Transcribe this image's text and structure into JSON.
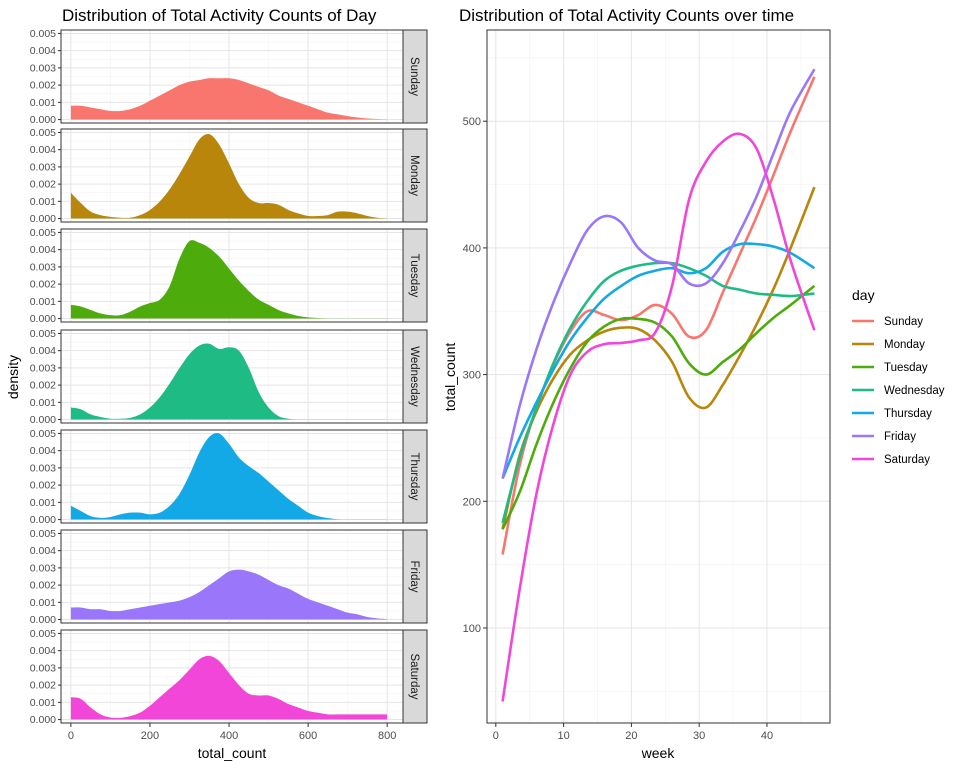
{
  "colors": {
    "Sunday": "#F8766D",
    "Monday": "#B8860B",
    "Tuesday": "#4DAC0B",
    "Wednesday": "#1FBB84",
    "Thursday": "#13A8E6",
    "Friday": "#9A77FA",
    "Saturday": "#F246D8"
  },
  "chart_data": [
    {
      "type": "area",
      "title": "Distribution of Total Activity Counts of Day",
      "xlabel": "total_count",
      "ylabel": "density",
      "xlim": [
        -25,
        840
      ],
      "ylim": [
        -0.0002,
        0.0052
      ],
      "x_ticks": [
        0,
        200,
        400,
        600,
        800
      ],
      "x_tick_labels": [
        "0",
        "200",
        "400",
        "600",
        "800"
      ],
      "y_ticks": [
        0,
        0.001,
        0.002,
        0.003,
        0.004,
        0.005
      ],
      "y_tick_labels": [
        "0.000",
        "0.001",
        "0.002",
        "0.003",
        "0.004",
        "0.005"
      ],
      "grid": true,
      "facet_strips": [
        "Sunday",
        "Monday",
        "Tuesday",
        "Wednesday",
        "Thursday",
        "Friday",
        "Saturday"
      ],
      "x": [
        0,
        25,
        50,
        75,
        100,
        125,
        150,
        175,
        200,
        225,
        250,
        275,
        300,
        325,
        350,
        375,
        400,
        425,
        450,
        475,
        500,
        525,
        550,
        575,
        600,
        625,
        650,
        675,
        700,
        725,
        750,
        775,
        800
      ],
      "series": [
        {
          "name": "Sunday",
          "values": [
            0.0008,
            0.0008,
            0.0007,
            0.0006,
            0.0005,
            0.0005,
            0.0006,
            0.0008,
            0.0011,
            0.0014,
            0.0017,
            0.002,
            0.0022,
            0.0023,
            0.0024,
            0.0024,
            0.0024,
            0.0023,
            0.0021,
            0.0019,
            0.0017,
            0.0014,
            0.0012,
            0.001,
            0.0008,
            0.0006,
            0.0004,
            0.0003,
            0.0002,
            0.00012,
            6e-05,
            3e-05,
            1e-05
          ]
        },
        {
          "name": "Monday",
          "values": [
            0.0015,
            0.0009,
            0.0004,
            0.0002,
            0.0001,
            5e-05,
            5e-05,
            0.0002,
            0.0005,
            0.001,
            0.0017,
            0.0026,
            0.0036,
            0.0046,
            0.0049,
            0.0043,
            0.0032,
            0.002,
            0.0012,
            0.0009,
            0.0009,
            0.0008,
            0.0005,
            0.0003,
            0.00015,
            0.00015,
            0.0002,
            0.0004,
            0.0004,
            0.0003,
            0.00015,
            5e-05,
            1e-05
          ]
        },
        {
          "name": "Tuesday",
          "values": [
            0.0008,
            0.0007,
            0.0005,
            0.0003,
            0.0002,
            0.0002,
            0.0004,
            0.0007,
            0.0009,
            0.0011,
            0.0019,
            0.0035,
            0.0045,
            0.0044,
            0.0041,
            0.0036,
            0.0029,
            0.0022,
            0.0016,
            0.0011,
            0.0008,
            0.0005,
            0.0003,
            0.00015,
            7e-05,
            3e-05,
            1e-05,
            1e-05,
            1e-05,
            1e-05,
            1e-05,
            1e-05,
            1e-05
          ]
        },
        {
          "name": "Wednesday",
          "values": [
            0.0007,
            0.0006,
            0.0003,
            0.00015,
            5e-05,
            5e-05,
            0.0001,
            0.0003,
            0.0007,
            0.0013,
            0.0021,
            0.003,
            0.0038,
            0.0043,
            0.0044,
            0.0041,
            0.0042,
            0.004,
            0.003,
            0.0016,
            0.0007,
            0.0002,
            5e-05,
            1e-05,
            1e-05,
            1e-05,
            1e-05,
            1e-05,
            1e-05,
            1e-05,
            1e-05,
            1e-05,
            1e-05
          ]
        },
        {
          "name": "Thursday",
          "values": [
            0.0008,
            0.0005,
            0.0002,
            0.0001,
            0.00015,
            0.0003,
            0.0004,
            0.0004,
            0.0003,
            0.0004,
            0.0008,
            0.0015,
            0.0026,
            0.0039,
            0.0048,
            0.005,
            0.0044,
            0.0036,
            0.0031,
            0.0027,
            0.0022,
            0.0017,
            0.0012,
            0.0008,
            0.0004,
            0.0002,
            8e-05,
            2e-05,
            1e-05,
            1e-05,
            1e-05,
            1e-05,
            1e-05
          ]
        },
        {
          "name": "Friday",
          "values": [
            0.0007,
            0.0007,
            0.0006,
            0.0006,
            0.0005,
            0.0005,
            0.0006,
            0.0007,
            0.0008,
            0.0009,
            0.001,
            0.0011,
            0.0013,
            0.0016,
            0.002,
            0.0024,
            0.0028,
            0.0029,
            0.0028,
            0.0026,
            0.0023,
            0.002,
            0.0018,
            0.0015,
            0.0012,
            0.001,
            0.0008,
            0.0006,
            0.0004,
            0.0003,
            0.00015,
            7e-05,
            3e-05
          ]
        },
        {
          "name": "Saturday",
          "values": [
            0.0013,
            0.0012,
            0.0007,
            0.0003,
            0.00012,
            0.0001,
            0.0002,
            0.0004,
            0.0008,
            0.0013,
            0.0018,
            0.0023,
            0.0029,
            0.0035,
            0.0037,
            0.0034,
            0.0027,
            0.002,
            0.0015,
            0.0014,
            0.0014,
            0.0012,
            0.0009,
            0.0007,
            0.0005,
            0.0004,
            0.0003,
            0.0003,
            0.0003,
            0.0003,
            0.0003,
            0.0003,
            0.0003
          ]
        }
      ]
    },
    {
      "type": "line",
      "title": "Distribution of Total Activity Counts over time",
      "xlabel": "week",
      "ylabel": "total_count",
      "xlim": [
        -1.3,
        49.3
      ],
      "ylim": [
        25,
        572
      ],
      "x_ticks": [
        0,
        10,
        20,
        30,
        40
      ],
      "x_tick_labels": [
        "0",
        "10",
        "20",
        "30",
        "40"
      ],
      "y_ticks": [
        100,
        200,
        300,
        400,
        500
      ],
      "y_tick_labels": [
        "100",
        "200",
        "300",
        "400",
        "500"
      ],
      "grid": true,
      "legend_title": "day",
      "legend_position": "right",
      "x": [
        1,
        3.5,
        6,
        8.5,
        11,
        13.5,
        16,
        18.5,
        21,
        23.5,
        26,
        28.5,
        31,
        33.5,
        36,
        38.5,
        41,
        43.5,
        47
      ],
      "series": [
        {
          "name": "Sunday",
          "values": [
            158,
            228,
            274,
            308,
            334,
            350,
            347,
            343,
            347,
            355,
            348,
            330,
            335,
            365,
            395,
            425,
            458,
            492,
            535
          ]
        },
        {
          "name": "Monday",
          "values": [
            178,
            236,
            271,
            297,
            316,
            327,
            334,
            337,
            336,
            327,
            310,
            282,
            274,
            292,
            315,
            340,
            368,
            400,
            448
          ]
        },
        {
          "name": "Tuesday",
          "values": [
            178,
            207,
            245,
            278,
            305,
            326,
            338,
            344,
            344,
            341,
            330,
            309,
            300,
            310,
            320,
            333,
            345,
            355,
            370
          ]
        },
        {
          "name": "Wednesday",
          "values": [
            183,
            234,
            274,
            309,
            337,
            358,
            374,
            382,
            386,
            388,
            388,
            384,
            378,
            370,
            367,
            364,
            363,
            362,
            364
          ]
        },
        {
          "name": "Thursday",
          "values": [
            218,
            250,
            278,
            304,
            327,
            345,
            360,
            370,
            378,
            382,
            384,
            380,
            384,
            397,
            403,
            403,
            401,
            396,
            384
          ]
        },
        {
          "name": "Friday",
          "values": [
            218,
            275,
            320,
            357,
            388,
            414,
            425,
            420,
            400,
            390,
            387,
            372,
            372,
            388,
            413,
            441,
            475,
            508,
            541
          ]
        },
        {
          "name": "Saturday",
          "values": [
            42,
            130,
            206,
            261,
            300,
            318,
            324,
            325,
            327,
            333,
            370,
            438,
            468,
            484,
            490,
            478,
            438,
            390,
            335
          ]
        }
      ]
    }
  ]
}
